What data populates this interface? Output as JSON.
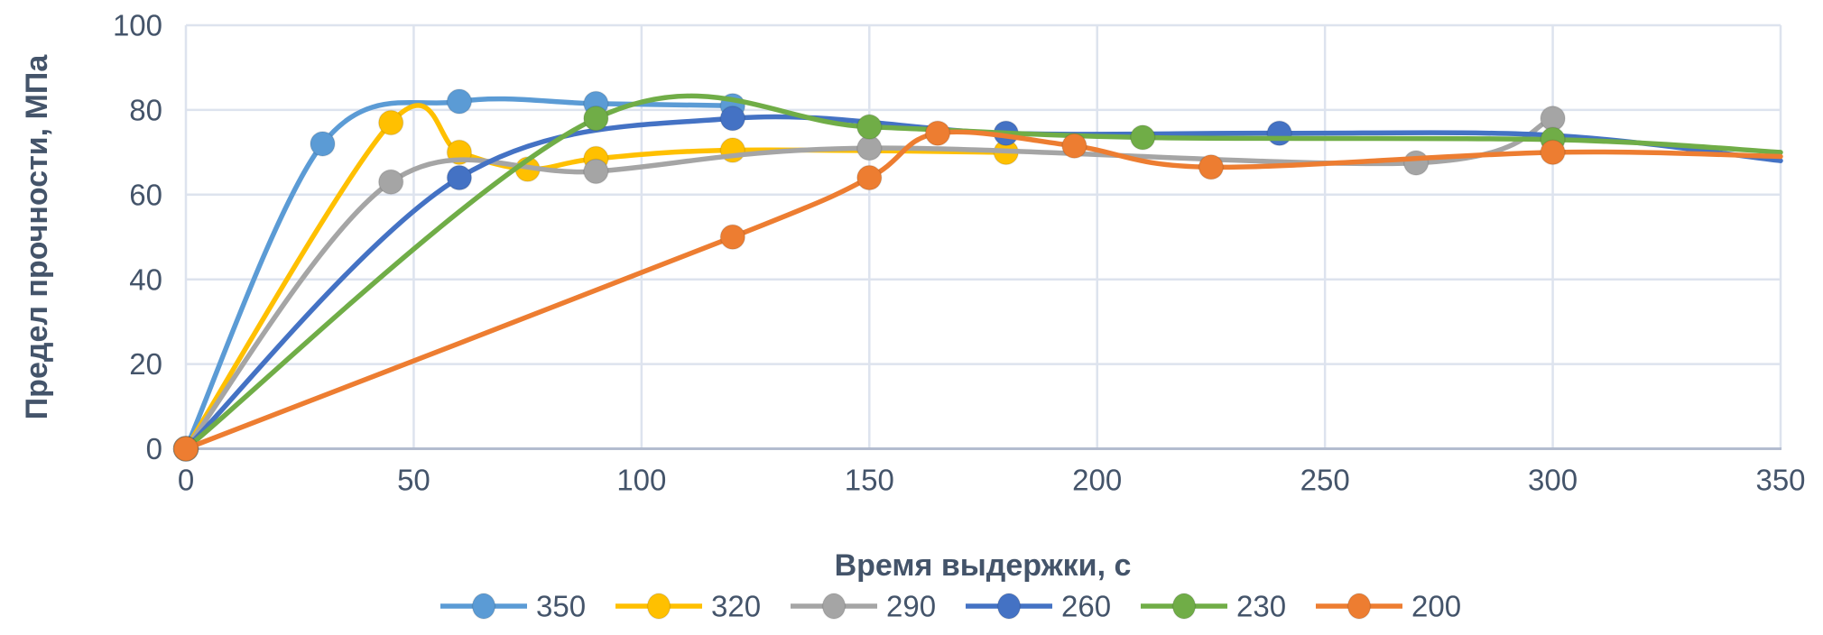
{
  "chart_data": {
    "type": "line",
    "line_shape": "smooth",
    "title": "",
    "xlabel": "Время выдержки, с",
    "ylabel": "Предел прочности, МПа",
    "xlim": [
      0,
      350
    ],
    "ylim": [
      0,
      100
    ],
    "x_ticks": [
      0,
      50,
      100,
      150,
      200,
      250,
      300,
      350
    ],
    "y_ticks": [
      0,
      20,
      40,
      60,
      80,
      100
    ],
    "grid": true,
    "legend_position": "bottom",
    "legend_entries": [
      "350",
      "320",
      "290",
      "260",
      "230",
      "200"
    ],
    "series": [
      {
        "name": "350",
        "color": "#5B9BD5",
        "points": [
          [
            0,
            0,
            1
          ],
          [
            30,
            72,
            1
          ],
          [
            60,
            82,
            1
          ],
          [
            90,
            81.5,
            1
          ],
          [
            120,
            81,
            1
          ]
        ]
      },
      {
        "name": "320",
        "color": "#FFC000",
        "points": [
          [
            0,
            0,
            1
          ],
          [
            45,
            77,
            1
          ],
          [
            60,
            70,
            1
          ],
          [
            75,
            66,
            1
          ],
          [
            90,
            68.5,
            1
          ],
          [
            120,
            70.5,
            1
          ],
          [
            180,
            70,
            1
          ]
        ]
      },
      {
        "name": "290",
        "color": "#A5A5A5",
        "points": [
          [
            0,
            0,
            1
          ],
          [
            45,
            63,
            1
          ],
          [
            90,
            65.5,
            1
          ],
          [
            150,
            71,
            1
          ],
          [
            270,
            67.5,
            1
          ],
          [
            300,
            78,
            1
          ]
        ]
      },
      {
        "name": "260",
        "color": "#4472C4",
        "points": [
          [
            0,
            0,
            1
          ],
          [
            60,
            64,
            1
          ],
          [
            120,
            78,
            1
          ],
          [
            180,
            74.5,
            1
          ],
          [
            240,
            74.5,
            1
          ],
          [
            300,
            74,
            0
          ],
          [
            350,
            68,
            0
          ]
        ]
      },
      {
        "name": "230",
        "color": "#70AD47",
        "points": [
          [
            0,
            0,
            1
          ],
          [
            90,
            78,
            1
          ],
          [
            150,
            76,
            1
          ],
          [
            210,
            73.5,
            1
          ],
          [
            300,
            73,
            1
          ],
          [
            350,
            70,
            0
          ]
        ]
      },
      {
        "name": "200",
        "color": "#ED7D31",
        "points": [
          [
            0,
            0,
            1
          ],
          [
            120,
            50,
            1
          ],
          [
            150,
            64,
            1
          ],
          [
            165,
            74.5,
            1
          ],
          [
            195,
            71.5,
            1
          ],
          [
            225,
            66.5,
            1
          ],
          [
            300,
            70,
            1
          ],
          [
            350,
            69,
            0
          ]
        ]
      }
    ]
  },
  "styles": {
    "background": "#ffffff",
    "text_color": "#44546A",
    "gridline_color": "#dde3ee",
    "axis_line_color": "#b3bccf",
    "marker_edge_color": "rgba(0,0,0,0.10)"
  }
}
